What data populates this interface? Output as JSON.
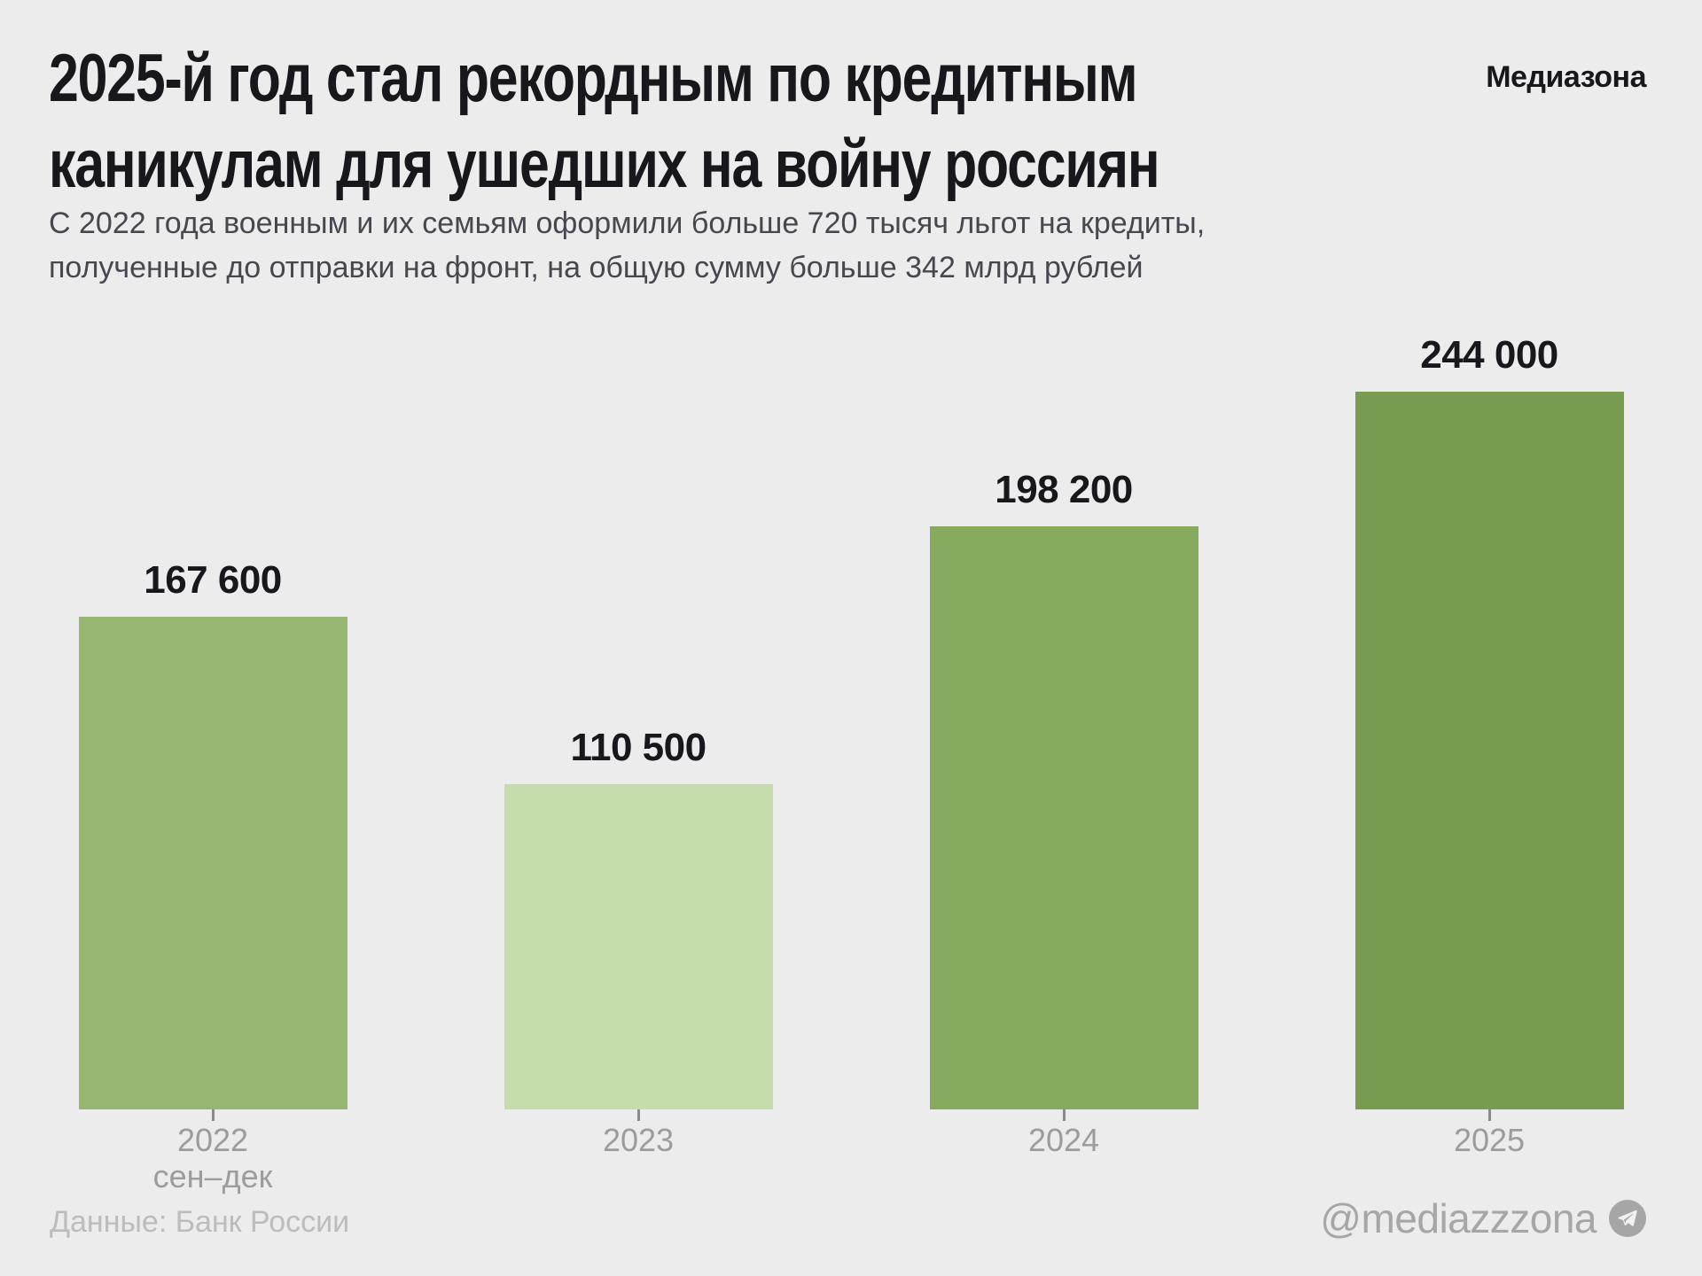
{
  "header": {
    "brand": "Медиазона",
    "title_lines": [
      "2025-й год стал рекордным по кредитным",
      "каникулам для ушедших на войну россиян"
    ],
    "subtitle_lines": [
      "С 2022 года военным и их семьям оформили больше 720 тысяч льгот на кредиты,",
      "полученные до отправки на фронт, на общую сумму больше 342 млрд рублей"
    ]
  },
  "chart_data": {
    "type": "bar",
    "title": "2025-й год стал рекордным по кредитным каникулам для ушедших на войну россиян",
    "categories": [
      "2022",
      "2023",
      "2024",
      "2025"
    ],
    "category_sublabels": [
      "сен–дек",
      "",
      "",
      ""
    ],
    "values": [
      167600,
      110500,
      198200,
      244000
    ],
    "value_labels": [
      "167 600",
      "110 500",
      "198 200",
      "244 000"
    ],
    "bar_colors": [
      "#96b672",
      "#c5ddac",
      "#86ab5f",
      "#779b50"
    ],
    "xlabel": "",
    "ylabel": "",
    "ylim": [
      0,
      244000
    ],
    "grid": false,
    "legend": false
  },
  "footer": {
    "source": "Данные: Банк России",
    "telegram_handle": "@mediazzzona"
  },
  "colors": {
    "background": "#ececec",
    "title_text": "#17171c",
    "subtitle_text": "#47474f",
    "axis_text": "#9c9c9c",
    "tick": "#8a8a8a",
    "source_text": "#bcbcbc",
    "handle_text": "#a6a6a6"
  }
}
